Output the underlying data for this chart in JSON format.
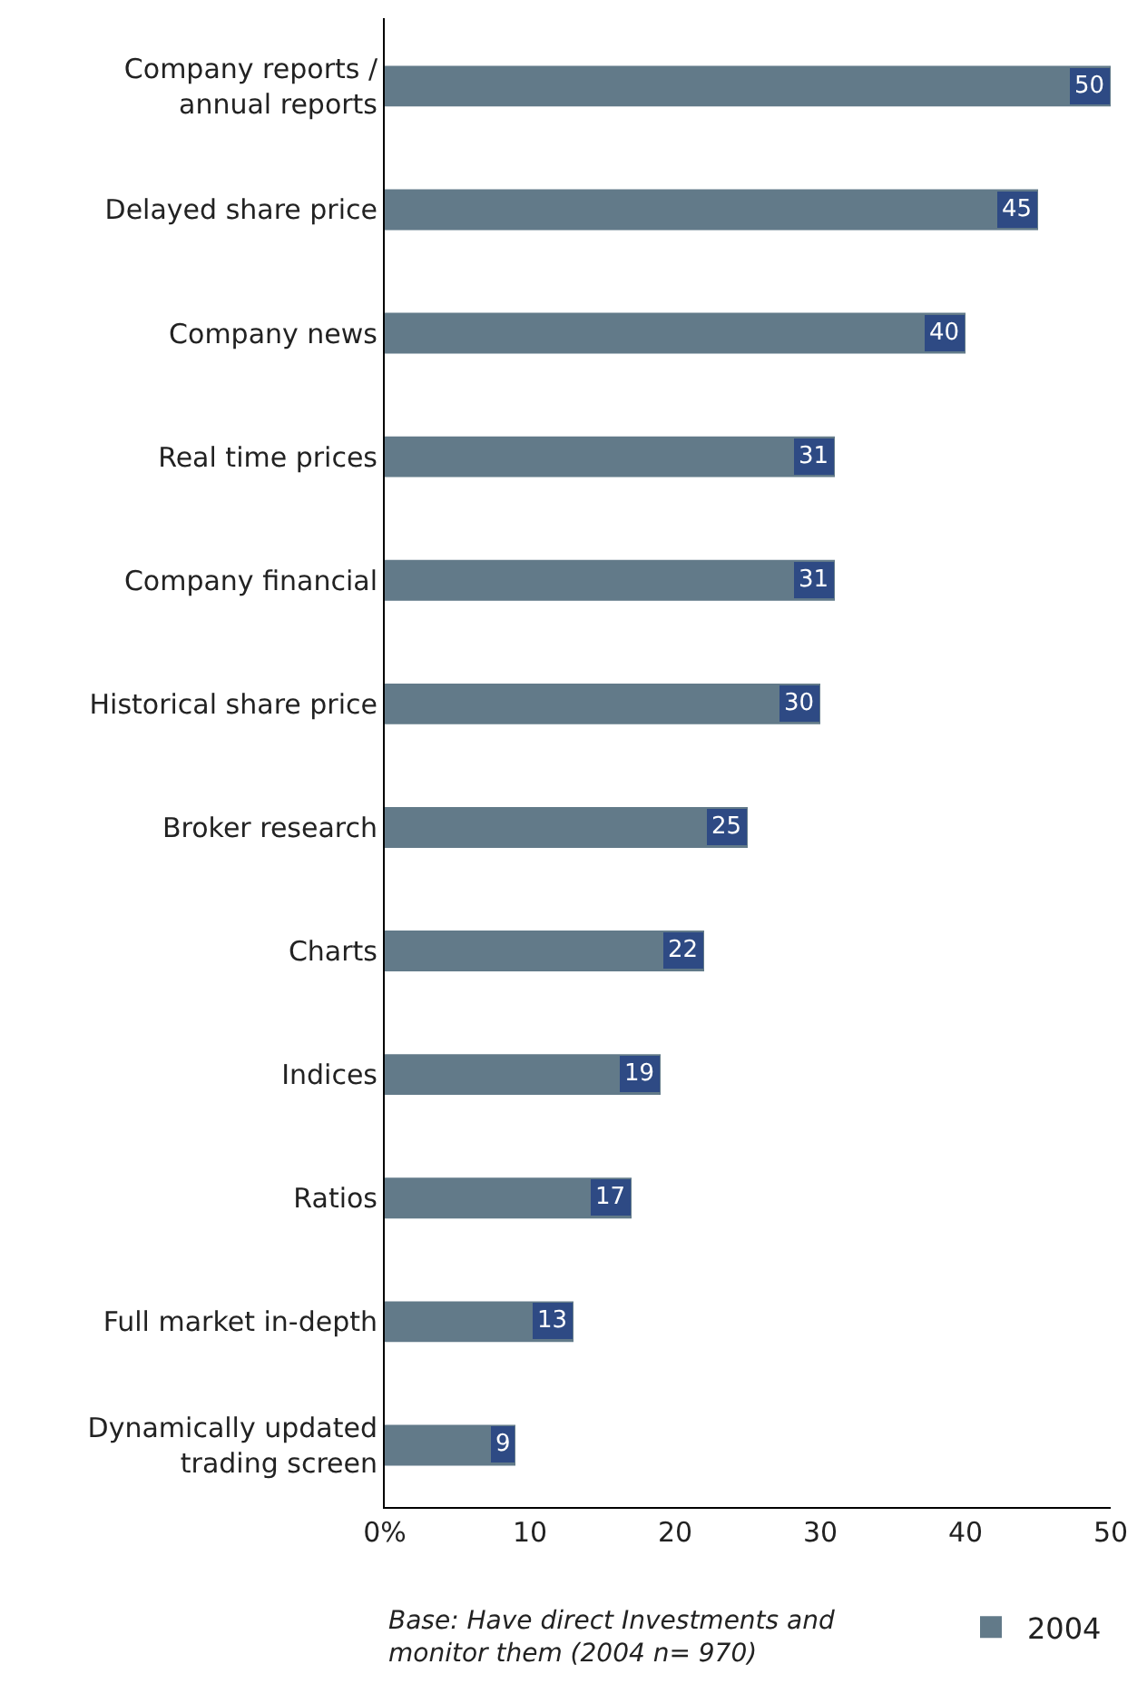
{
  "chart_data": {
    "type": "bar",
    "orientation": "horizontal",
    "categories": [
      "Company reports /\nannual reports",
      "Delayed share price",
      "Company news",
      "Real time prices",
      "Company financial",
      "Historical share price",
      "Broker research",
      "Charts",
      "Indices",
      "Ratios",
      "Full market in-depth",
      "Dynamically updated\ntrading screen"
    ],
    "series": [
      {
        "name": "2004",
        "color": "#627a89",
        "values": [
          50,
          45,
          40,
          31,
          31,
          30,
          25,
          22,
          19,
          17,
          13,
          9
        ]
      }
    ],
    "data_labels": true,
    "xlim": [
      0,
      50
    ],
    "xticks": [
      {
        "value": 0,
        "label": "0%"
      },
      10,
      20,
      30,
      40,
      50
    ],
    "legend": "bottom right",
    "annotations": [
      "Base: Have direct Investments and\nmonitor them (2004 n= 970)"
    ]
  }
}
